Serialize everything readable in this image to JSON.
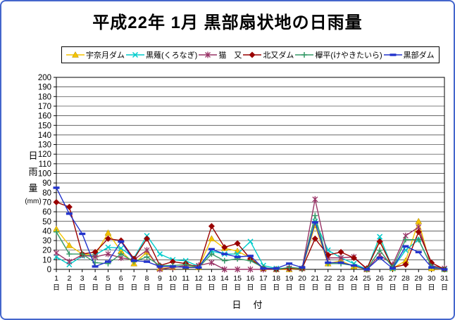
{
  "frame": {
    "border_color": "#4466cc",
    "background": "#ffffff"
  },
  "title": "平成22年 1月 黒部扇状地の日雨量",
  "chart_data": {
    "type": "line",
    "title": "平成22年 1月 黒部扇状地の日雨量",
    "xlabel": "日　付",
    "ylabel": "日雨量(mm)",
    "ylabel_lines": [
      "日",
      "雨",
      "量",
      "(mm)"
    ],
    "ylim": [
      0,
      200
    ],
    "ytick_step": 10,
    "grid": "horizontal",
    "legend_position": "top",
    "categories": [
      1,
      2,
      3,
      4,
      5,
      6,
      7,
      8,
      9,
      10,
      11,
      12,
      13,
      14,
      15,
      16,
      17,
      18,
      19,
      20,
      21,
      22,
      23,
      24,
      25,
      26,
      27,
      28,
      29,
      30,
      31
    ],
    "x_unit_suffix": "日",
    "series": [
      {
        "name": "宇奈月ダム",
        "color": "#f5c400",
        "marker": "triangle",
        "values": [
          42,
          25,
          16,
          15,
          38,
          19,
          6,
          18,
          1,
          2,
          3,
          2,
          32,
          22,
          19,
          12,
          1,
          0,
          0,
          1,
          46,
          6,
          9,
          3,
          0,
          30,
          1,
          9,
          50,
          1,
          0
        ]
      },
      {
        "name": "黒薙(くろなぎ)",
        "color": "#00cccc",
        "marker": "x",
        "values": [
          13,
          5,
          14,
          15,
          23,
          22,
          12,
          35,
          16,
          10,
          9,
          3,
          19,
          16,
          16,
          29,
          4,
          1,
          1,
          1,
          50,
          20,
          12,
          6,
          0,
          34,
          1,
          20,
          31,
          3,
          0
        ]
      },
      {
        "name": "猫　又",
        "color": "#993366",
        "marker": "asterisk",
        "values": [
          17,
          8,
          15,
          13,
          16,
          12,
          10,
          20,
          0,
          2,
          4,
          4,
          7,
          0,
          0,
          0,
          0,
          0,
          1,
          1,
          73,
          12,
          12,
          13,
          0,
          15,
          5,
          35,
          44,
          4,
          1
        ]
      },
      {
        "name": "北又ダム",
        "color": "#990000",
        "marker": "diamond",
        "values": [
          70,
          65,
          16,
          18,
          32,
          30,
          11,
          32,
          4,
          8,
          6,
          2,
          45,
          23,
          27,
          11,
          1,
          0,
          1,
          1,
          32,
          15,
          18,
          12,
          1,
          29,
          2,
          5,
          39,
          7,
          0
        ]
      },
      {
        "name": "欅平(けやきたいら)",
        "color": "#339966",
        "marker": "plus",
        "values": [
          39,
          16,
          16,
          7,
          6,
          16,
          8,
          13,
          4,
          4,
          5,
          2,
          16,
          9,
          11,
          9,
          2,
          0,
          2,
          1,
          56,
          6,
          6,
          4,
          0,
          20,
          2,
          31,
          31,
          3,
          0
        ]
      },
      {
        "name": "黒部ダム",
        "color": "#2233cc",
        "marker": "dash",
        "values": [
          85,
          58,
          37,
          3,
          8,
          29,
          9,
          8,
          3,
          3,
          2,
          2,
          21,
          16,
          13,
          14,
          1,
          1,
          6,
          2,
          49,
          7,
          7,
          4,
          0,
          12,
          1,
          24,
          18,
          2,
          0
        ]
      }
    ]
  }
}
